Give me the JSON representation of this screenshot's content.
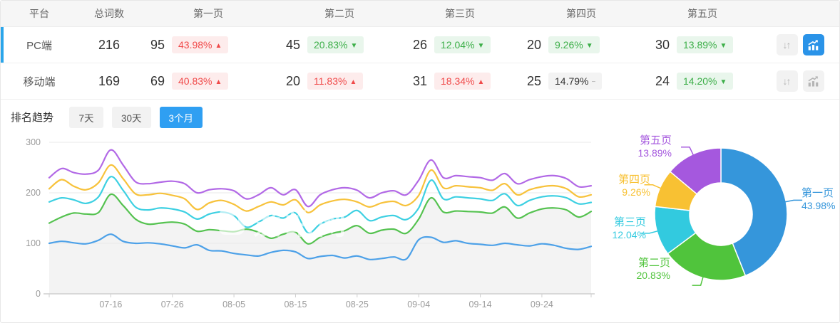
{
  "table": {
    "columns": [
      "平台",
      "总词数",
      "第一页",
      "第二页",
      "第三页",
      "第四页",
      "第五页"
    ],
    "sort_icon": "↓↑",
    "trend_glyphs": {
      "up": "▲",
      "down": "▼",
      "flat": "−"
    },
    "rows": [
      {
        "platform": "PC端",
        "total": "216",
        "selected": true,
        "chart_active": true,
        "pages": [
          {
            "count": "95",
            "pct": "43.98%",
            "trend": "up"
          },
          {
            "count": "45",
            "pct": "20.83%",
            "trend": "down"
          },
          {
            "count": "26",
            "pct": "12.04%",
            "trend": "down"
          },
          {
            "count": "20",
            "pct": "9.26%",
            "trend": "down"
          },
          {
            "count": "30",
            "pct": "13.89%",
            "trend": "down"
          }
        ]
      },
      {
        "platform": "移动端",
        "total": "169",
        "selected": false,
        "chart_active": false,
        "pages": [
          {
            "count": "69",
            "pct": "40.83%",
            "trend": "up"
          },
          {
            "count": "20",
            "pct": "11.83%",
            "trend": "up"
          },
          {
            "count": "31",
            "pct": "18.34%",
            "trend": "up"
          },
          {
            "count": "25",
            "pct": "14.79%",
            "trend": "flat"
          },
          {
            "count": "24",
            "pct": "14.20%",
            "trend": "down"
          }
        ]
      }
    ]
  },
  "trend_section": {
    "title": "排名趋势",
    "tabs": [
      {
        "label": "7天",
        "active": false
      },
      {
        "label": "30天",
        "active": false
      },
      {
        "label": "3个月",
        "active": true
      }
    ]
  },
  "watermark": {
    "text": "爱站网"
  },
  "colors": {
    "accent_blue": "#2f9ff2",
    "row_accent": "#2aa5ea",
    "icon_active": "#2a93e8",
    "badge_up_text": "#f04a4a",
    "badge_up_bg": "#fdecec",
    "badge_down_text": "#3daf49",
    "badge_down_bg": "#e9f6ec",
    "badge_flat_text": "#333333",
    "badge_flat_bg": "#f3f3f3"
  },
  "chart_data": [
    {
      "type": "line",
      "title": "排名趋势 3个月",
      "ylim": [
        0,
        300
      ],
      "y_ticks": [
        0,
        100,
        200,
        300
      ],
      "grid": true,
      "x_tick_labels": [
        "07-16",
        "07-26",
        "08-05",
        "08-15",
        "08-25",
        "09-04",
        "09-14",
        "09-24"
      ],
      "x_tick_indices": [
        5,
        10,
        15,
        20,
        25,
        30,
        35,
        40
      ],
      "series": [
        {
          "name": "line1",
          "color": "#4da1e8",
          "values": [
            100,
            104,
            101,
            99,
            106,
            118,
            104,
            100,
            101,
            99,
            95,
            91,
            97,
            86,
            85,
            80,
            77,
            75,
            82,
            86,
            83,
            70,
            74,
            76,
            71,
            75,
            68,
            70,
            73,
            69,
            107,
            112,
            102,
            105,
            100,
            98,
            96,
            100,
            97,
            95,
            99,
            96,
            90,
            88,
            94
          ]
        },
        {
          "name": "line2",
          "color": "#55c250",
          "area_fill": "#f3f3f3",
          "values": [
            140,
            152,
            160,
            158,
            161,
            197,
            175,
            148,
            138,
            140,
            142,
            138,
            124,
            127,
            125,
            123,
            128,
            122,
            110,
            118,
            122,
            99,
            112,
            120,
            125,
            135,
            120,
            126,
            128,
            120,
            148,
            190,
            162,
            164,
            163,
            162,
            160,
            172,
            150,
            160,
            168,
            170,
            166,
            152,
            163
          ]
        },
        {
          "name": "line3",
          "color": "#3dd0e2",
          "values": [
            182,
            190,
            186,
            179,
            192,
            232,
            205,
            172,
            166,
            170,
            168,
            162,
            148,
            158,
            162,
            155,
            132,
            142,
            155,
            150,
            160,
            121,
            138,
            148,
            152,
            165,
            145,
            152,
            155,
            147,
            170,
            225,
            188,
            192,
            190,
            188,
            185,
            198,
            175,
            185,
            192,
            194,
            190,
            178,
            181
          ]
        },
        {
          "name": "line4",
          "color": "#f7c23b",
          "values": [
            208,
            226,
            213,
            206,
            220,
            255,
            228,
            198,
            196,
            199,
            195,
            188,
            167,
            180,
            185,
            177,
            164,
            173,
            182,
            176,
            186,
            161,
            176,
            184,
            187,
            182,
            172,
            180,
            183,
            175,
            195,
            245,
            210,
            214,
            212,
            210,
            205,
            218,
            196,
            206,
            212,
            214,
            208,
            192,
            196
          ]
        },
        {
          "name": "line5",
          "color": "#b269e6",
          "values": [
            230,
            248,
            240,
            237,
            245,
            285,
            255,
            222,
            218,
            221,
            223,
            218,
            200,
            206,
            208,
            204,
            188,
            196,
            210,
            196,
            206,
            173,
            196,
            206,
            210,
            205,
            190,
            200,
            204,
            196,
            225,
            265,
            230,
            234,
            232,
            230,
            225,
            238,
            218,
            226,
            232,
            234,
            228,
            212,
            214
          ]
        }
      ]
    },
    {
      "type": "pie",
      "donut": true,
      "labels": [
        "第一页",
        "第二页",
        "第三页",
        "第四页",
        "第五页"
      ],
      "values": [
        43.98,
        20.83,
        12.04,
        9.26,
        13.89
      ],
      "display": [
        "43.98%",
        "20.83%",
        "12.04%",
        "9.26%",
        "13.89%"
      ],
      "colors": [
        "#3596db",
        "#50c43c",
        "#32cadf",
        "#f8c133",
        "#a558de"
      ],
      "legend_position": "callout-labels"
    }
  ]
}
